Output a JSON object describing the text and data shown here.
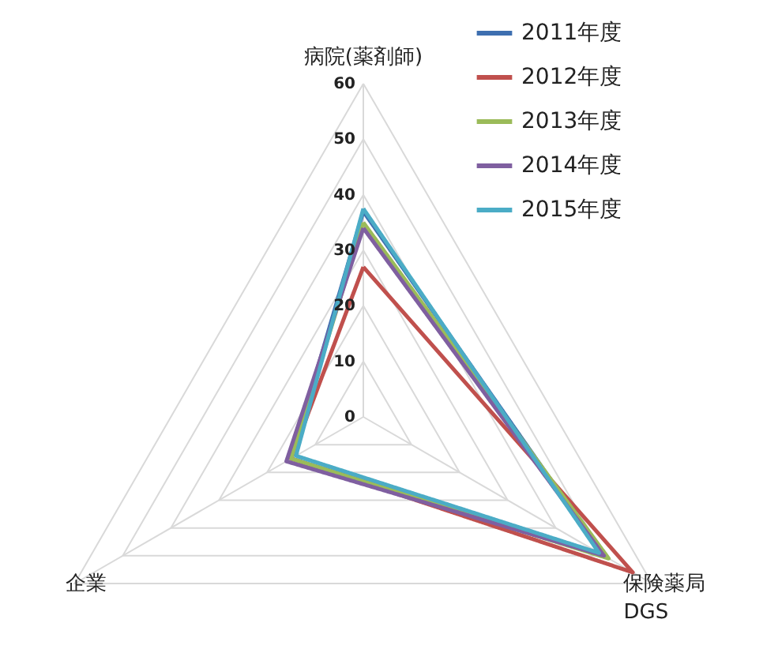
{
  "chart_data": {
    "type": "radar",
    "categories": [
      "病院(薬剤師)",
      "保険薬局\nDGS",
      "企業"
    ],
    "series": [
      {
        "name": "2011年度",
        "color": "#3e6fb0",
        "values": [
          37,
          50,
          15
        ]
      },
      {
        "name": "2012年度",
        "color": "#c0504d",
        "values": [
          27,
          56,
          15
        ]
      },
      {
        "name": "2013年度",
        "color": "#9bbb59",
        "values": [
          35,
          51,
          15
        ]
      },
      {
        "name": "2014年度",
        "color": "#7f5fa0",
        "values": [
          34,
          50,
          16
        ]
      },
      {
        "name": "2015年度",
        "color": "#4bacc6",
        "values": [
          37.5,
          49,
          14
        ]
      }
    ],
    "ylim": [
      0,
      60
    ],
    "yticks": [
      0,
      10,
      20,
      30,
      40,
      50,
      60
    ],
    "grid": true,
    "legend": "top right",
    "line_style": "solid",
    "marker": "none"
  }
}
